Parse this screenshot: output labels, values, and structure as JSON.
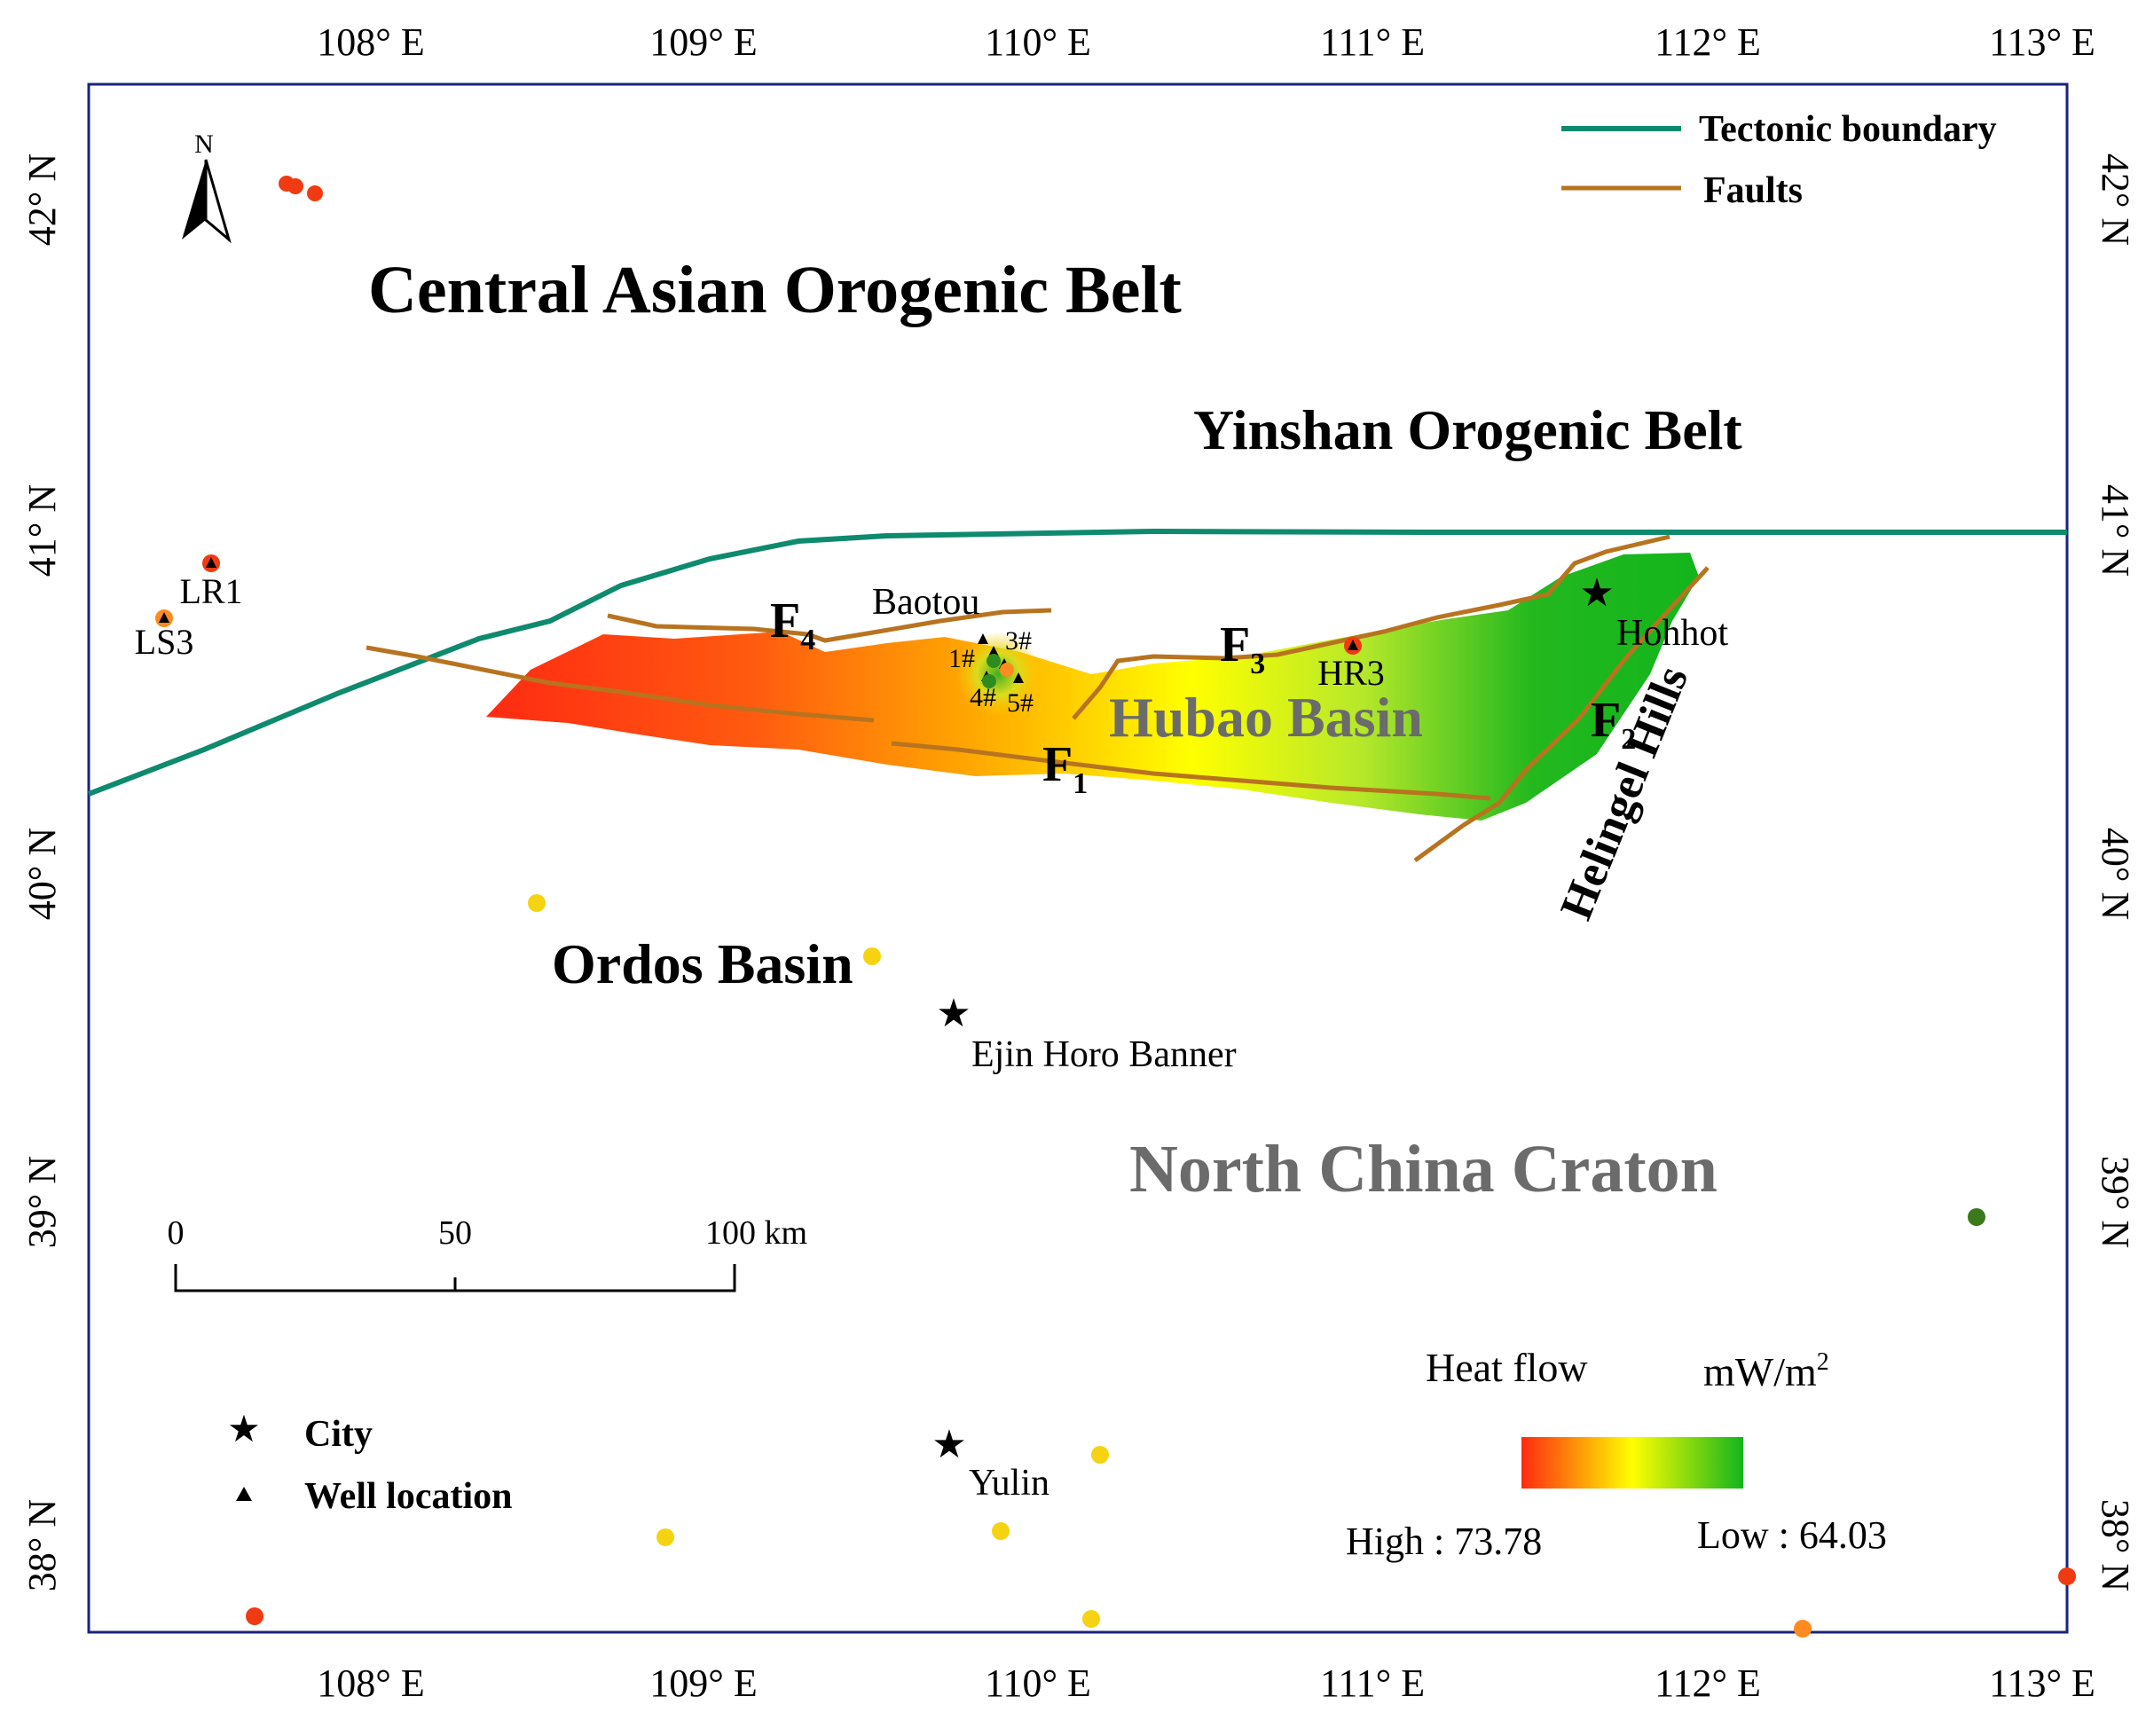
{
  "axes": {
    "longitude_labels": [
      "108° E",
      "109° E",
      "110° E",
      "111° E",
      "112° E",
      "113° E"
    ],
    "latitude_labels": [
      "42° N",
      "41° N",
      "40° N",
      "39° N",
      "38° N"
    ]
  },
  "regions": {
    "central_asian": "Central Asian Orogenic Belt",
    "yinshan": "Yinshan Orogenic Belt",
    "hubao": "Hubao Basin",
    "ordos": "Ordos Basin",
    "north_china": "North China Craton",
    "helingel": "Helingel Hills"
  },
  "cities": {
    "baotou": "Baotou",
    "hohhot": "Hohhot",
    "ejin": "Ejin Horo Banner",
    "yulin": "Yulin"
  },
  "wells": {
    "lr1": "LR1",
    "ls3": "LS3",
    "hr3": "HR3",
    "w1": "1#",
    "w3": "3#",
    "w4": "4#",
    "w5": "5#"
  },
  "faults": {
    "f1": "F",
    "f1_sub": "1",
    "f2": "F",
    "f2_sub": "2",
    "f3": "F",
    "f3_sub": "3",
    "f4": "F",
    "f4_sub": "4"
  },
  "north_arrow": "N",
  "scale_bar": {
    "t0": "0",
    "t50": "50",
    "t100": "100 km"
  },
  "legend": {
    "tectonic": "Tectonic boundary",
    "faults": "Faults",
    "city": "City",
    "well": "Well location"
  },
  "heatflow": {
    "title": "Heat flow",
    "unit": "mW/m",
    "unit_sup": "2",
    "high": "High : 73.78",
    "low": "Low : 64.03"
  },
  "colors": {
    "frame": "#1a237e",
    "tectonic_boundary": "#0e8a6e",
    "fault": "#b8731f",
    "heat_high": "#ff2a12",
    "heat_mid": "#ffff00",
    "heat_low": "#13b51c"
  }
}
